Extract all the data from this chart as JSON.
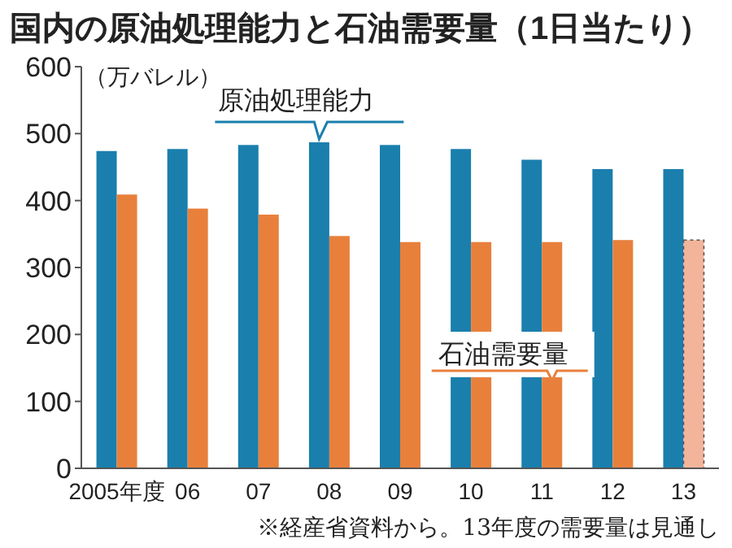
{
  "chart_data": {
    "type": "bar",
    "title": "国内の原油処理能力と石油需要量（1日当たり）",
    "ylabel": "（万バレル）",
    "categories": [
      "2005年度",
      "06",
      "07",
      "08",
      "09",
      "10",
      "11",
      "12",
      "13"
    ],
    "series": [
      {
        "name": "原油処理能力",
        "color": "#1a7fad",
        "values": [
          474,
          477,
          483,
          487,
          483,
          477,
          461,
          447,
          447
        ]
      },
      {
        "name": "石油需要量",
        "color": "#e8803c",
        "colors": [
          "#e8803c",
          "#e8803c",
          "#e8803c",
          "#e8803c",
          "#e8803c",
          "#e8803c",
          "#e8803c",
          "#e8803c",
          "#f2b49a"
        ],
        "values": [
          409,
          388,
          379,
          347,
          338,
          338,
          338,
          341,
          341
        ]
      }
    ],
    "ylim": [
      0,
      600
    ],
    "yticks": [
      0,
      100,
      200,
      300,
      400,
      500,
      600
    ],
    "grid": false,
    "legend": false,
    "annotations": [
      "※経産省資料から。13年度の需要量は見通し"
    ]
  }
}
